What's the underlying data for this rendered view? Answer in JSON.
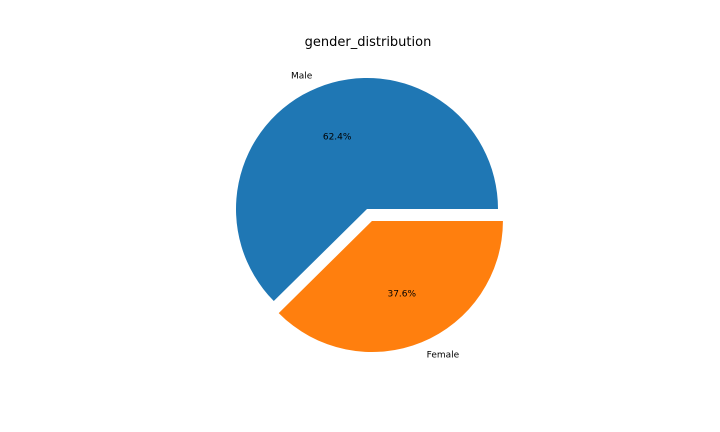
{
  "chart_data": {
    "type": "pie",
    "title": "gender_distribution",
    "slices": [
      {
        "label": "Male",
        "value": 62.4,
        "percent_label": "62.4%",
        "color": "#1f77b4",
        "exploded": false
      },
      {
        "label": "Female",
        "value": 37.6,
        "percent_label": "37.6%",
        "color": "#ff7f0e",
        "exploded": true
      }
    ],
    "start_angle": "0 degrees (3 o'clock), counter-clockwise",
    "legend": "none"
  }
}
